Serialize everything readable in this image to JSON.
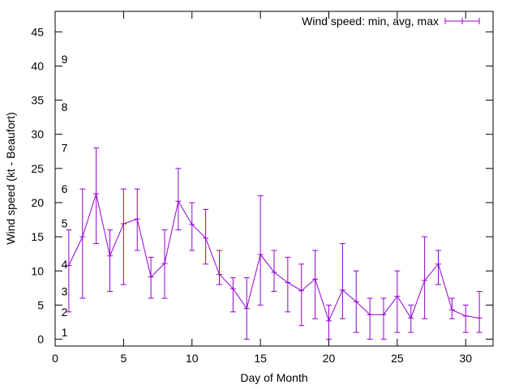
{
  "chart_data": {
    "type": "line",
    "title": "",
    "xlabel": "Day of Month",
    "ylabel": "Wind speed (kt - Beaufort)",
    "xlim": [
      0,
      32
    ],
    "ylim": [
      -1,
      48
    ],
    "x_ticks": [
      0,
      5,
      10,
      15,
      20,
      25,
      30
    ],
    "y_ticks": [
      0,
      5,
      10,
      15,
      20,
      25,
      30,
      35,
      40,
      45
    ],
    "grid": false,
    "legend_position": "top-right",
    "series": [
      {
        "name": "Wind speed: min, avg, max",
        "color": "#9400d3",
        "points": [
          {
            "x": 1,
            "min": 4,
            "avg": 10.8,
            "max": 16
          },
          {
            "x": 2,
            "min": 6,
            "avg": 15,
            "max": 22
          },
          {
            "x": 3,
            "min": 14,
            "avg": 21.3,
            "max": 28
          },
          {
            "x": 4,
            "min": 7,
            "avg": 12.2,
            "max": 16
          },
          {
            "x": 5,
            "min": 8,
            "avg": 16.9,
            "max": 22
          },
          {
            "x": 6,
            "min": 13,
            "avg": 17.6,
            "max": 22
          },
          {
            "x": 7,
            "min": 6,
            "avg": 9.1,
            "max": 12
          },
          {
            "x": 8,
            "min": 6,
            "avg": 11.1,
            "max": 16
          },
          {
            "x": 9,
            "min": 16,
            "avg": 20.2,
            "max": 25
          },
          {
            "x": 10,
            "min": 13,
            "avg": 16.8,
            "max": 20
          },
          {
            "x": 11,
            "min": 11,
            "avg": 14.8,
            "max": 19
          },
          {
            "x": 12,
            "min": 8,
            "avg": 9.5,
            "max": 13
          },
          {
            "x": 13,
            "min": 4,
            "avg": 7.4,
            "max": 9
          },
          {
            "x": 14,
            "min": 0,
            "avg": 4.5,
            "max": 9
          },
          {
            "x": 15,
            "min": 5,
            "avg": 12.4,
            "max": 21
          },
          {
            "x": 16,
            "min": 7,
            "avg": 9.8,
            "max": 13
          },
          {
            "x": 17,
            "min": 4,
            "avg": 8.3,
            "max": 12
          },
          {
            "x": 18,
            "min": 2,
            "avg": 7.1,
            "max": 11
          },
          {
            "x": 19,
            "min": 3,
            "avg": 8.8,
            "max": 13
          },
          {
            "x": 20,
            "min": 0,
            "avg": 2.7,
            "max": 5
          },
          {
            "x": 21,
            "min": 3,
            "avg": 7.2,
            "max": 14
          },
          {
            "x": 22,
            "min": 1,
            "avg": 5.5,
            "max": 10
          },
          {
            "x": 23,
            "min": 0,
            "avg": 3.6,
            "max": 6
          },
          {
            "x": 24,
            "min": 0,
            "avg": 3.6,
            "max": 6
          },
          {
            "x": 25,
            "min": 1,
            "avg": 6.3,
            "max": 10
          },
          {
            "x": 26,
            "min": 1,
            "avg": 3.1,
            "max": 5
          },
          {
            "x": 27,
            "min": 3,
            "avg": 8.6,
            "max": 15
          },
          {
            "x": 28,
            "min": 8,
            "avg": 11,
            "max": 13
          },
          {
            "x": 29,
            "min": 3,
            "avg": 4.3,
            "max": 6
          },
          {
            "x": 30,
            "min": 1,
            "avg": 3.4,
            "max": 5
          },
          {
            "x": 31,
            "min": 1,
            "avg": 3.1,
            "max": 7
          }
        ]
      }
    ],
    "beaufort_labels": [
      {
        "label": "1",
        "y": 1
      },
      {
        "label": "2",
        "y": 4
      },
      {
        "label": "3",
        "y": 7
      },
      {
        "label": "4",
        "y": 11
      },
      {
        "label": "5",
        "y": 17
      },
      {
        "label": "6",
        "y": 22
      },
      {
        "label": "7",
        "y": 28
      },
      {
        "label": "8",
        "y": 34
      },
      {
        "label": "9",
        "y": 41
      }
    ]
  }
}
